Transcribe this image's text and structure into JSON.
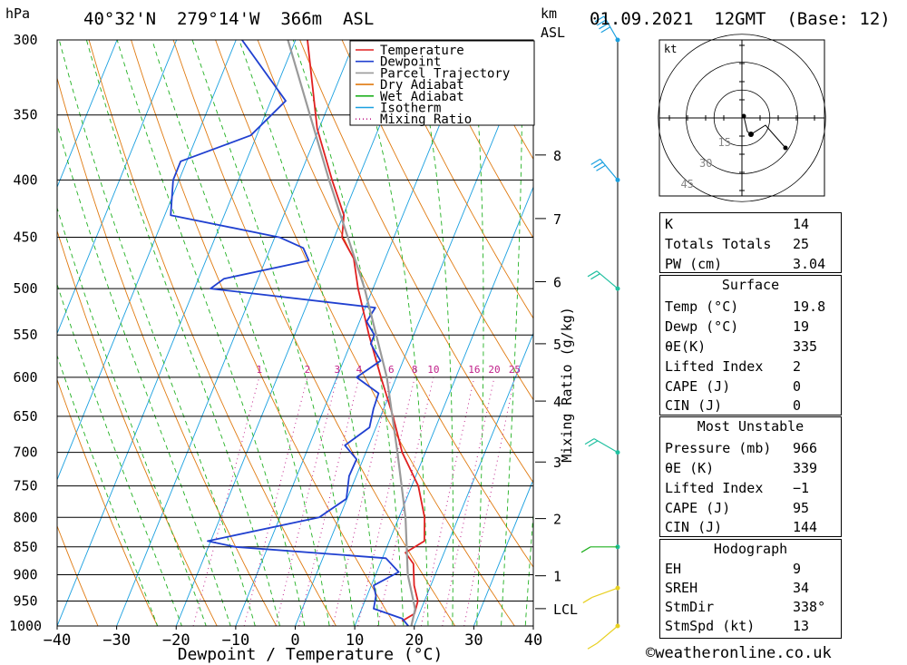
{
  "header": {
    "pressure_unit": "hPa",
    "location": "40°32'N  279°14'W  366m  ASL",
    "km_label": "km",
    "asl_label": "ASL",
    "datetime": "01.09.2021  12GMT  (Base: 12)"
  },
  "chart_data": {
    "type": "line",
    "title": "40°32'N  279°14'W  366m  ASL",
    "xlabel": "Dewpoint / Temperature (°C)",
    "ylabel": "hPa",
    "xlim": [
      -40,
      40
    ],
    "ylim": [
      1000,
      300
    ],
    "y_scale": "log",
    "skew": "skew-T log-p",
    "x_ticks": [
      "−40",
      "−30",
      "−20",
      "−10",
      "0",
      "10",
      "20",
      "30",
      "40"
    ],
    "x_tick_values": [
      -40,
      -30,
      -20,
      -10,
      0,
      10,
      20,
      30,
      40
    ],
    "y_ticks": [
      "300",
      "350",
      "400",
      "450",
      "500",
      "550",
      "600",
      "650",
      "700",
      "750",
      "800",
      "850",
      "900",
      "950",
      "1000"
    ],
    "y_tick_values": [
      300,
      350,
      400,
      450,
      500,
      550,
      600,
      650,
      700,
      750,
      800,
      850,
      900,
      950,
      1000
    ],
    "km_ticks": [
      {
        "label": "8",
        "p": 380
      },
      {
        "label": "7",
        "p": 433
      },
      {
        "label": "6",
        "p": 493
      },
      {
        "label": "5",
        "p": 560
      },
      {
        "label": "4",
        "p": 630
      },
      {
        "label": "3",
        "p": 714
      },
      {
        "label": "2",
        "p": 802
      },
      {
        "label": "1",
        "p": 902
      },
      {
        "label": "LCL",
        "p": 965
      }
    ],
    "mixing_ratio_axis_label": "Mixing Ratio (g/kg)",
    "mixing_ratio_labels": [
      "1",
      "2",
      "3",
      "4",
      "6",
      "8",
      "10",
      "16",
      "20",
      "25"
    ],
    "mixing_ratio_values": [
      1,
      2,
      3,
      4,
      6,
      8,
      10,
      16,
      20,
      25
    ],
    "legend": [
      "Temperature",
      "Dewpoint",
      "Parcel Trajectory",
      "Dry Adiabat",
      "Wet Adiabat",
      "Isotherm",
      "Mixing Ratio"
    ],
    "legend_position": "top-right",
    "series": [
      {
        "name": "Temperature",
        "color": "#e02020",
        "points": [
          [
            300,
            -38
          ],
          [
            360,
            -30.3
          ],
          [
            400,
            -24.3
          ],
          [
            430,
            -19.9
          ],
          [
            450,
            -18.7
          ],
          [
            470,
            -15.3
          ],
          [
            500,
            -12.5
          ],
          [
            550,
            -7.5
          ],
          [
            600,
            -2.6
          ],
          [
            650,
            2.1
          ],
          [
            700,
            6.1
          ],
          [
            750,
            11.1
          ],
          [
            800,
            14.3
          ],
          [
            840,
            15.9
          ],
          [
            860,
            13.5
          ],
          [
            880,
            15.6
          ],
          [
            920,
            17.2
          ],
          [
            950,
            18.9
          ],
          [
            975,
            19.2
          ],
          [
            990,
            17.6
          ]
        ]
      },
      {
        "name": "Dewpoint",
        "color": "#2040d0",
        "points": [
          [
            300,
            -49
          ],
          [
            340,
            -37.5
          ],
          [
            365,
            -41
          ],
          [
            385,
            -51
          ],
          [
            400,
            -51
          ],
          [
            430,
            -49
          ],
          [
            450,
            -29.2
          ],
          [
            460,
            -24.5
          ],
          [
            472,
            -22.7
          ],
          [
            490,
            -35.7
          ],
          [
            500,
            -37.3
          ],
          [
            520,
            -8.3
          ],
          [
            535,
            -8.8
          ],
          [
            550,
            -6.6
          ],
          [
            560,
            -6.6
          ],
          [
            580,
            -3.8
          ],
          [
            600,
            -6.7
          ],
          [
            620,
            -1.9
          ],
          [
            640,
            -1.7
          ],
          [
            665,
            -1.1
          ],
          [
            690,
            -4.0
          ],
          [
            710,
            -1.1
          ],
          [
            735,
            -1.2
          ],
          [
            770,
            -0.1
          ],
          [
            800,
            -3.4
          ],
          [
            840,
            -20.5
          ],
          [
            850,
            -15.5
          ],
          [
            870,
            10.6
          ],
          [
            895,
            13.7
          ],
          [
            920,
            10.4
          ],
          [
            940,
            11.5
          ],
          [
            965,
            12.0
          ],
          [
            985,
            17.5
          ],
          [
            1000,
            19.0
          ]
        ]
      },
      {
        "name": "Parcel Trajectory",
        "color": "#9a9a9a",
        "points": [
          [
            300,
            -41.3
          ],
          [
            400,
            -24.8
          ],
          [
            500,
            -11.4
          ],
          [
            600,
            -1.6
          ],
          [
            700,
            5.3
          ],
          [
            800,
            11.1
          ],
          [
            900,
            15.4
          ],
          [
            966,
            19.0
          ],
          [
            1000,
            19.5
          ]
        ]
      }
    ],
    "wind_barbs": [
      {
        "p": 300,
        "dir_deg": 330,
        "speed_kt": 35
      },
      {
        "p": 400,
        "dir_deg": 320,
        "speed_kt": 25
      },
      {
        "p": 500,
        "dir_deg": 310,
        "speed_kt": 15
      },
      {
        "p": 700,
        "dir_deg": 300,
        "speed_kt": 15
      },
      {
        "p": 850,
        "dir_deg": 270,
        "speed_kt": 10
      },
      {
        "p": 925,
        "dir_deg": 250,
        "speed_kt": 5
      },
      {
        "p": 1000,
        "dir_deg": 230,
        "speed_kt": 5
      }
    ]
  },
  "hodograph": {
    "unit_label": "kt",
    "ring_labels": [
      "15",
      "30",
      "45"
    ],
    "ring_values_kt": [
      15,
      30,
      45
    ]
  },
  "indices": {
    "rows": [
      {
        "key": "K",
        "value": "14"
      },
      {
        "key": "Totals Totals",
        "value": "25"
      },
      {
        "key": "PW (cm)",
        "value": "3.04"
      }
    ]
  },
  "surface": {
    "title": "Surface",
    "rows": [
      {
        "key": "Temp (°C)",
        "value": "19.8"
      },
      {
        "key": "Dewp (°C)",
        "value": "19"
      },
      {
        "key": "θE(K)",
        "value": "335"
      },
      {
        "key": "Lifted Index",
        "value": "2"
      },
      {
        "key": "CAPE (J)",
        "value": "0"
      },
      {
        "key": "CIN (J)",
        "value": "0"
      }
    ]
  },
  "most_unstable": {
    "title": "Most Unstable",
    "rows": [
      {
        "key": "Pressure (mb)",
        "value": "966"
      },
      {
        "key": "θE (K)",
        "value": "339"
      },
      {
        "key": "Lifted Index",
        "value": "−1"
      },
      {
        "key": "CAPE (J)",
        "value": "95"
      },
      {
        "key": "CIN (J)",
        "value": "144"
      }
    ]
  },
  "hodograph_table": {
    "title": "Hodograph",
    "rows": [
      {
        "key": "EH",
        "value": "9"
      },
      {
        "key": "SREH",
        "value": "34"
      },
      {
        "key": "StmDir",
        "value": "338°"
      },
      {
        "key": "StmSpd (kt)",
        "value": "13"
      }
    ]
  },
  "footer": {
    "credit": "©weatheronline.co.uk"
  },
  "colors": {
    "temperature": "#e02020",
    "dewpoint": "#2040d0",
    "parcel": "#9a9a9a",
    "dry_adiabat": "#e07a10",
    "wet_adiabat": "#20b020",
    "isotherm": "#1aa0e0",
    "mixing_ratio": "#c0208a",
    "wind_barb": "#e8d020"
  }
}
